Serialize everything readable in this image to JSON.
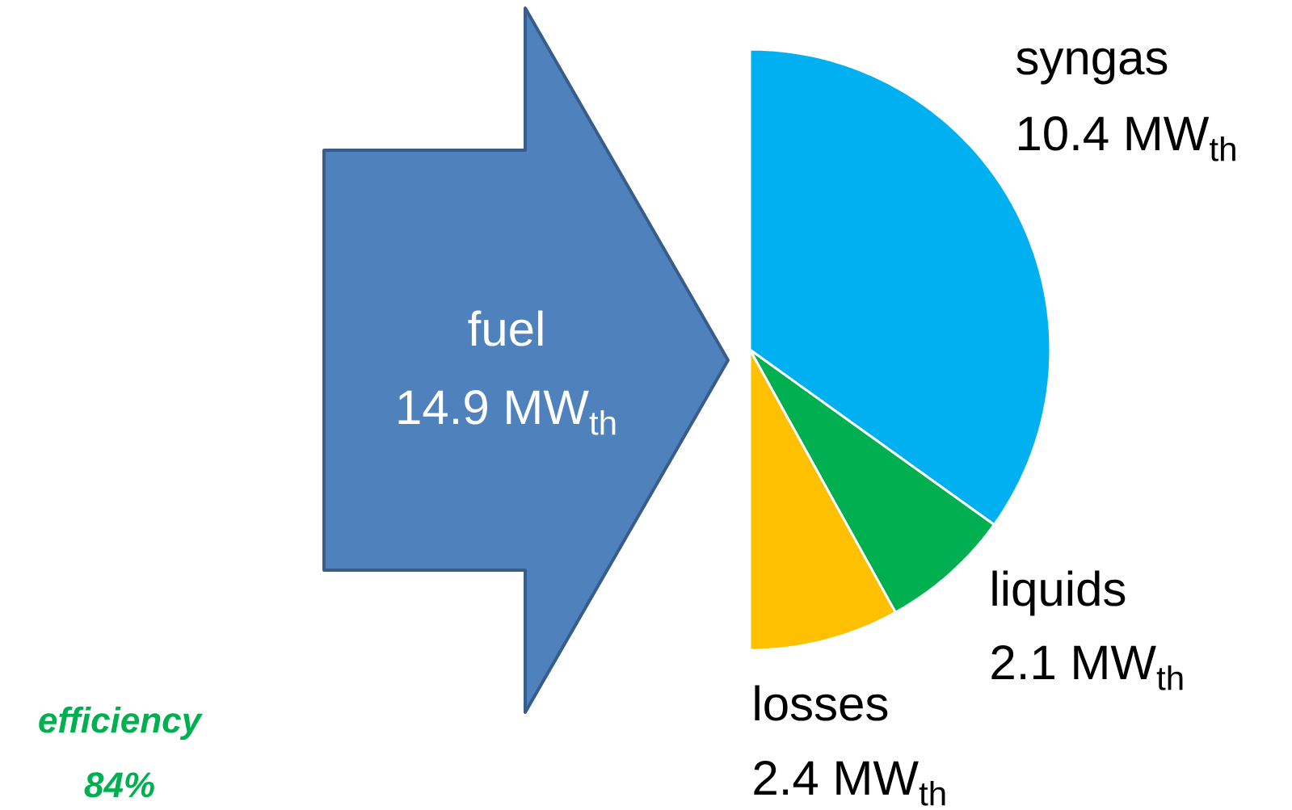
{
  "chart_data": {
    "type": "pie",
    "categories": [
      "syngas",
      "liquids",
      "losses"
    ],
    "values": [
      10.4,
      2.1,
      2.4
    ],
    "colors": [
      "#00b0f0",
      "#00b050",
      "#ffc000"
    ],
    "value_labels": [
      "10.4 MW$_{th}$",
      "2.1 MW$_{th}$",
      "2.4 MW$_{th}$"
    ],
    "annotations": [
      "fuel",
      "14.9 MW$_{th}$",
      "efficiency",
      "84%"
    ]
  }
}
